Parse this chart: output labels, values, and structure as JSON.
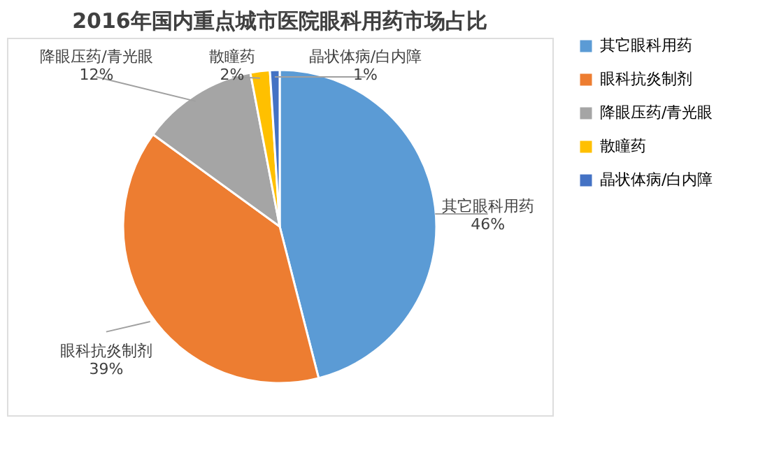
{
  "chart_data": {
    "type": "pie",
    "title": "2016年国内重点城市医院眼科用药市场占比",
    "categories": [
      "其它眼科用药",
      "眼科抗炎制剂",
      "降眼压药/青光眼",
      "散瞳药",
      "晶状体病/白内障"
    ],
    "values": [
      46,
      39,
      12,
      2,
      1
    ],
    "colors": [
      "#5b9bd5",
      "#ed7d31",
      "#a5a5a5",
      "#ffc000",
      "#4472c4"
    ],
    "value_labels": [
      "46%",
      "39%",
      "12%",
      "2%",
      "1%"
    ],
    "legend": "right"
  }
}
